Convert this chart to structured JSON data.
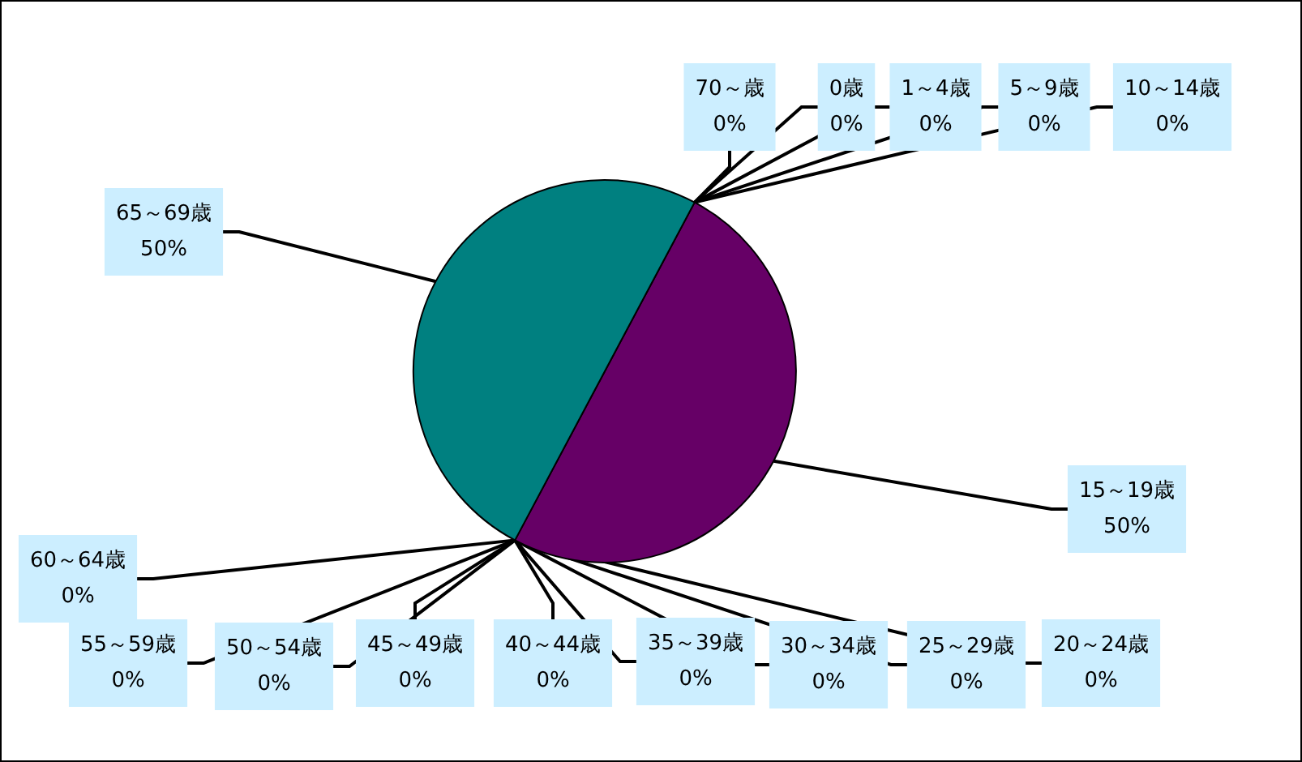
{
  "chart_data": {
    "type": "pie",
    "categories": [
      "0歳",
      "1～4歳",
      "5～9歳",
      "10～14歳",
      "15～19歳",
      "20～24歳",
      "25～29歳",
      "30～34歳",
      "35～39歳",
      "40～44歳",
      "45～49歳",
      "50～54歳",
      "55～59歳",
      "60～64歳",
      "65～69歳",
      "70～歳"
    ],
    "values": [
      0,
      0,
      0,
      0,
      50,
      0,
      0,
      0,
      0,
      0,
      0,
      0,
      0,
      0,
      50,
      0
    ],
    "colors": [
      "#9999ff",
      "#993366",
      "#ffffcc",
      "#ccffff",
      "#660066",
      "#ff8080",
      "#0066cc",
      "#ccccff",
      "#000080",
      "#ff00ff",
      "#ffff00",
      "#00ffff",
      "#800080",
      "#800000",
      "#008080",
      "#0000ff"
    ],
    "value_labels": [
      "0%",
      "0%",
      "0%",
      "0%",
      "50%",
      "0%",
      "0%",
      "0%",
      "0%",
      "0%",
      "0%",
      "0%",
      "0%",
      "0%",
      "50%",
      "0%"
    ]
  }
}
